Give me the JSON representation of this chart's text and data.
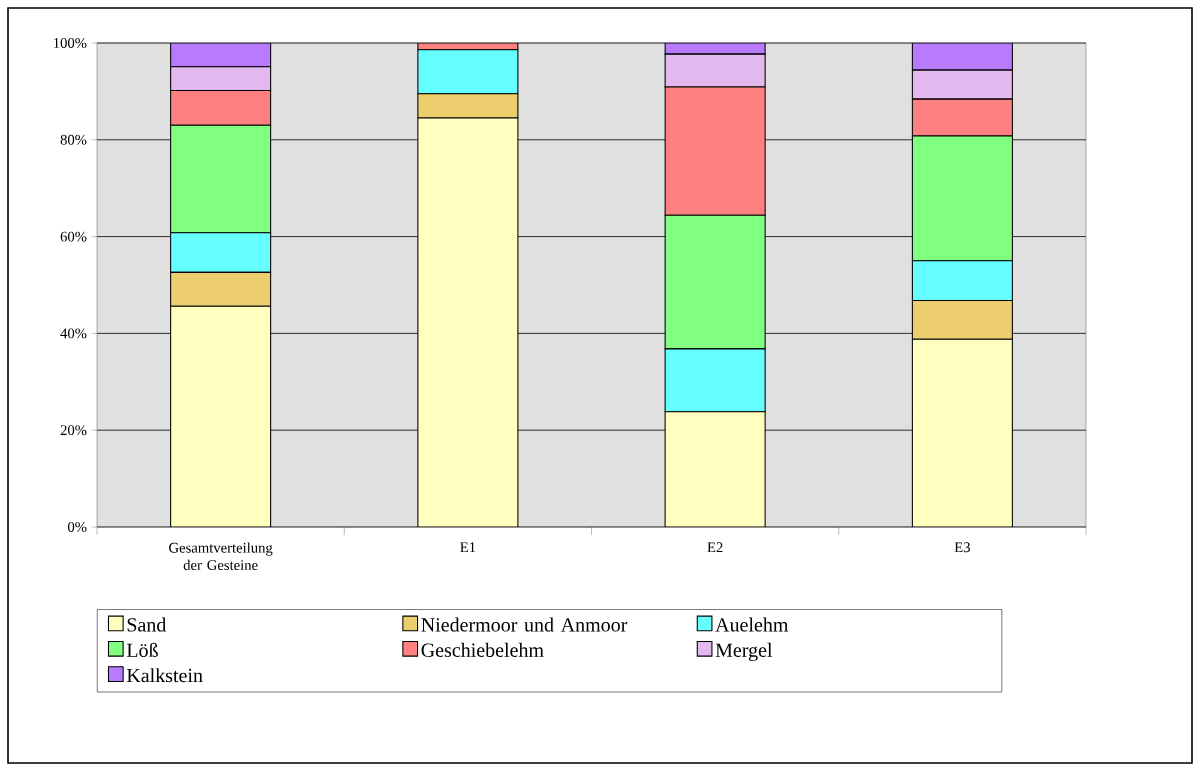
{
  "chart_data": {
    "type": "bar",
    "stacked": true,
    "categories": [
      "Gesamtverteilung der Gesteine",
      "E1",
      "E2",
      "E3"
    ],
    "ylim": [
      0,
      100
    ],
    "yticks": [
      {
        "value": 0,
        "label": "0%"
      },
      {
        "value": 20,
        "label": "20%"
      },
      {
        "value": 40,
        "label": "40%"
      },
      {
        "value": 60,
        "label": "60%"
      },
      {
        "value": 80,
        "label": "80%"
      },
      {
        "value": 100,
        "label": "100%"
      }
    ],
    "grid": "y",
    "legend": "bottom",
    "series": [
      {
        "name": "Sand",
        "color": "#ffffc0",
        "values": [
          45.6,
          84.5,
          23.8,
          38.8
        ]
      },
      {
        "name": "Niedermoor und Anmoor",
        "color": "#ecce6e",
        "values": [
          7.0,
          5.0,
          0,
          8.0
        ]
      },
      {
        "name": "Auelehm",
        "color": "#66ffff",
        "values": [
          8.2,
          9.1,
          13.0,
          8.2
        ]
      },
      {
        "name": "Löß",
        "color": "#80ff80",
        "values": [
          22.2,
          0,
          27.6,
          25.8
        ]
      },
      {
        "name": "Geschiebelehm",
        "color": "#ff8080",
        "values": [
          7.2,
          1.4,
          26.5,
          7.6
        ]
      },
      {
        "name": "Mergel",
        "color": "#e3b8ee",
        "values": [
          4.9,
          0,
          6.8,
          6.0
        ]
      },
      {
        "name": "Kalkstein",
        "color": "#b87aff",
        "values": [
          4.9,
          0,
          2.3,
          5.6
        ]
      }
    ]
  }
}
